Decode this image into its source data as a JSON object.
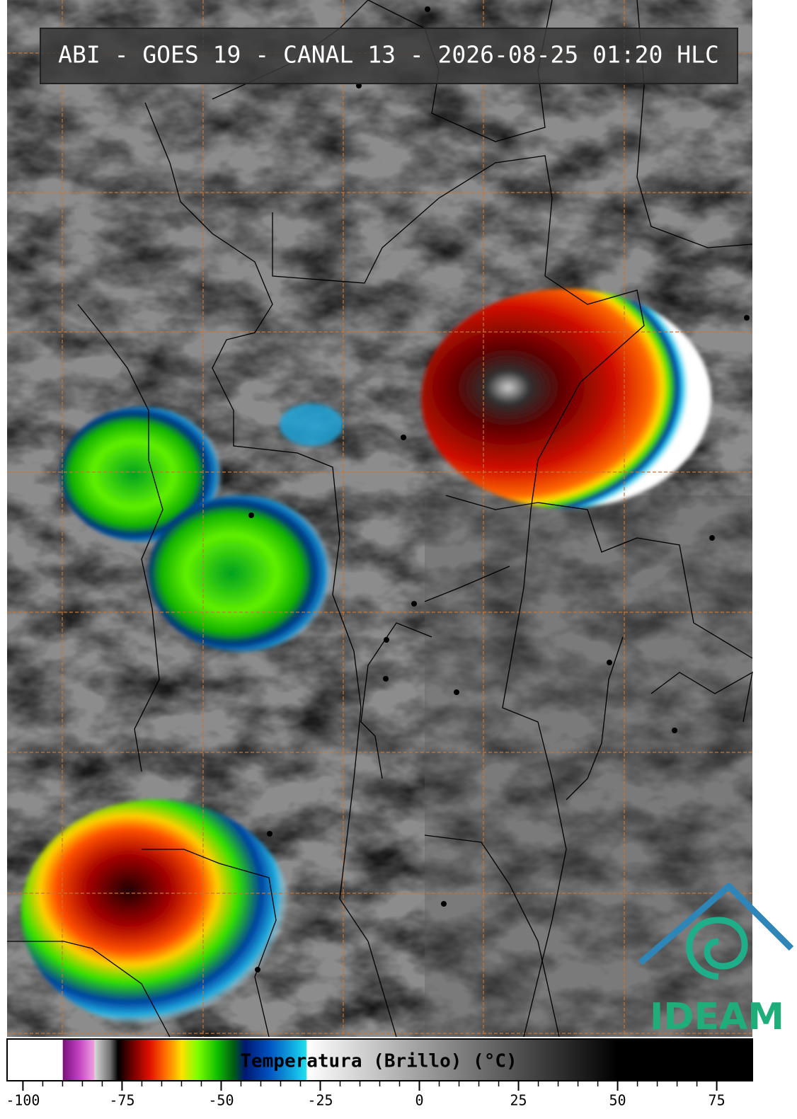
{
  "header": {
    "title": "ABI - GOES 19 - CANAL 13 - 2026-08-25 01:20 HLC"
  },
  "colorbar": {
    "label": "Temperatura (Brillo) (°C)",
    "lim": [
      -104,
      84
    ],
    "ticks": [
      -100,
      -75,
      -50,
      -25,
      0,
      25,
      50,
      75
    ],
    "colorscale": [
      {
        "value": -104,
        "color": "#ffffff"
      },
      {
        "value": -90,
        "color": "#ffffff"
      },
      {
        "value": -89.9,
        "color": "#7a0f7a"
      },
      {
        "value": -86,
        "color": "#c040c0"
      },
      {
        "value": -82,
        "color": "#f0a0e0"
      },
      {
        "value": -81.9,
        "color": "#d8d8d8"
      },
      {
        "value": -78,
        "color": "#707070"
      },
      {
        "value": -76,
        "color": "#000000"
      },
      {
        "value": -72,
        "color": "#7a0000"
      },
      {
        "value": -68,
        "color": "#e01000"
      },
      {
        "value": -64,
        "color": "#ff7000"
      },
      {
        "value": -60,
        "color": "#ffe000"
      },
      {
        "value": -56,
        "color": "#80ff00"
      },
      {
        "value": -51,
        "color": "#10c000"
      },
      {
        "value": -47,
        "color": "#006010"
      },
      {
        "value": -44,
        "color": "#001870"
      },
      {
        "value": -38,
        "color": "#0050c0"
      },
      {
        "value": -32,
        "color": "#10a8e0"
      },
      {
        "value": -28.5,
        "color": "#20e0f0"
      },
      {
        "value": -28.4,
        "color": "#ffffff"
      },
      {
        "value": 0,
        "color": "#a0a0a0"
      },
      {
        "value": 50,
        "color": "#000000"
      },
      {
        "value": 84,
        "color": "#000000"
      }
    ]
  },
  "logo": {
    "text": "IDEAM"
  }
}
